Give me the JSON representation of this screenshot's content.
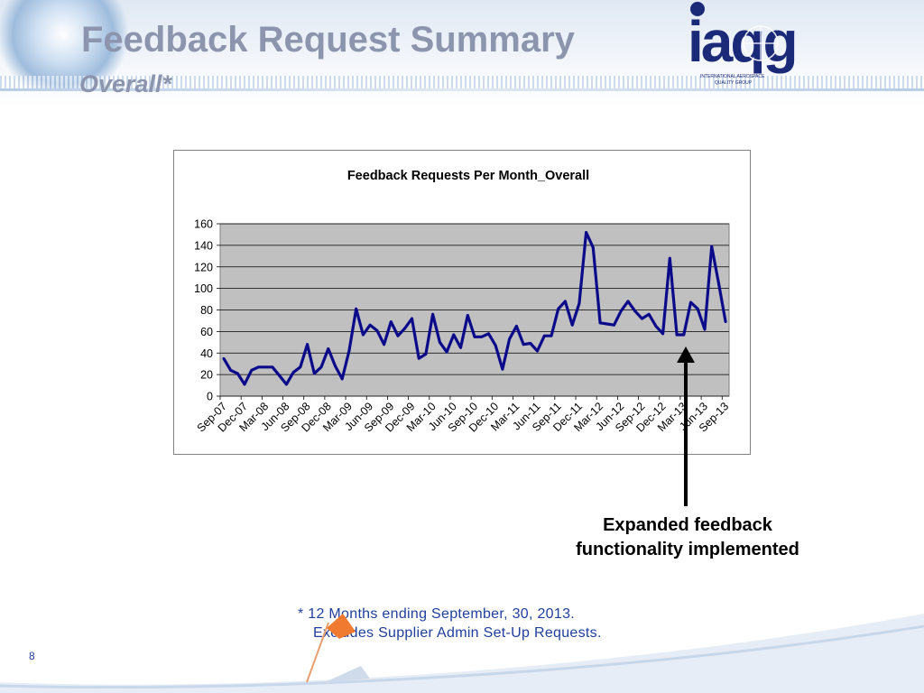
{
  "slide": {
    "title": "Feedback Request Summary",
    "subtitle": "Overall*",
    "logo_text": "iaqg",
    "logo_caption_1": "INTERNATIONAL AEROSPACE",
    "logo_caption_2": "QUALITY GROUP",
    "annotation": "Expanded feedback functionality implemented",
    "footnote_line1": "* 12 Months ending September, 30, 2013.",
    "footnote_line2": "Excludes Supplier Admin Set-Up Requests.",
    "page_number": "8"
  },
  "colors": {
    "title": "#8c95ad",
    "series": "#0a0a8a",
    "plot_bg": "#c0c0c0",
    "footnote": "#1f3f9b"
  },
  "chart_data": {
    "type": "line",
    "title": "Feedback Requests Per Month_Overall",
    "xlabel": "",
    "ylabel": "",
    "ylim": [
      0,
      160
    ],
    "yticks": [
      0,
      20,
      40,
      60,
      80,
      100,
      120,
      140,
      160
    ],
    "grid": true,
    "legend": "none",
    "tick_labels": [
      "Sep-07",
      "Dec-07",
      "Mar-08",
      "Jun-08",
      "Sep-08",
      "Dec-08",
      "Mar-09",
      "Jun-09",
      "Sep-09",
      "Dec-09",
      "Mar-10",
      "Jun-10",
      "Sep-10",
      "Dec-10",
      "Mar-11",
      "Jun-11",
      "Sep-11",
      "Dec-11",
      "Mar-12",
      "Jun-12",
      "Sep-12",
      "Dec-12",
      "Mar-13",
      "Jun-13",
      "Sep-13"
    ],
    "x": [
      "Sep-07",
      "Oct-07",
      "Nov-07",
      "Dec-07",
      "Jan-08",
      "Feb-08",
      "Mar-08",
      "Apr-08",
      "May-08",
      "Jun-08",
      "Jul-08",
      "Aug-08",
      "Sep-08",
      "Oct-08",
      "Nov-08",
      "Dec-08",
      "Jan-09",
      "Feb-09",
      "Mar-09",
      "Apr-09",
      "May-09",
      "Jun-09",
      "Jul-09",
      "Aug-09",
      "Sep-09",
      "Oct-09",
      "Nov-09",
      "Dec-09",
      "Jan-10",
      "Feb-10",
      "Mar-10",
      "Apr-10",
      "May-10",
      "Jun-10",
      "Jul-10",
      "Aug-10",
      "Sep-10",
      "Oct-10",
      "Nov-10",
      "Dec-10",
      "Jan-11",
      "Feb-11",
      "Mar-11",
      "Apr-11",
      "May-11",
      "Jun-11",
      "Jul-11",
      "Aug-11",
      "Sep-11",
      "Oct-11",
      "Nov-11",
      "Dec-11",
      "Jan-12",
      "Feb-12",
      "Mar-12",
      "Apr-12",
      "May-12",
      "Jun-12",
      "Jul-12",
      "Aug-12",
      "Sep-12",
      "Oct-12",
      "Nov-12",
      "Dec-12",
      "Jan-13",
      "Feb-13",
      "Mar-13",
      "Apr-13",
      "May-13",
      "Jun-13",
      "Jul-13",
      "Aug-13",
      "Sep-13"
    ],
    "series": [
      {
        "values": [
          35,
          24,
          21,
          11,
          24,
          27,
          27,
          27,
          19,
          11,
          22,
          27,
          48,
          21,
          27,
          44,
          28,
          16,
          42,
          81,
          57,
          66,
          61,
          48,
          69,
          56,
          63,
          72,
          35,
          39,
          76,
          50,
          41,
          57,
          45,
          75,
          55,
          55,
          58,
          47,
          25,
          53,
          65,
          48,
          49,
          42,
          56,
          56,
          81,
          88,
          66,
          86,
          152,
          138,
          68,
          67,
          66,
          79,
          88,
          79,
          72,
          76,
          65,
          58,
          128,
          57,
          57,
          87,
          81,
          62,
          139,
          105,
          69
        ]
      }
    ],
    "annotation_marker_x": "Mar-13"
  }
}
